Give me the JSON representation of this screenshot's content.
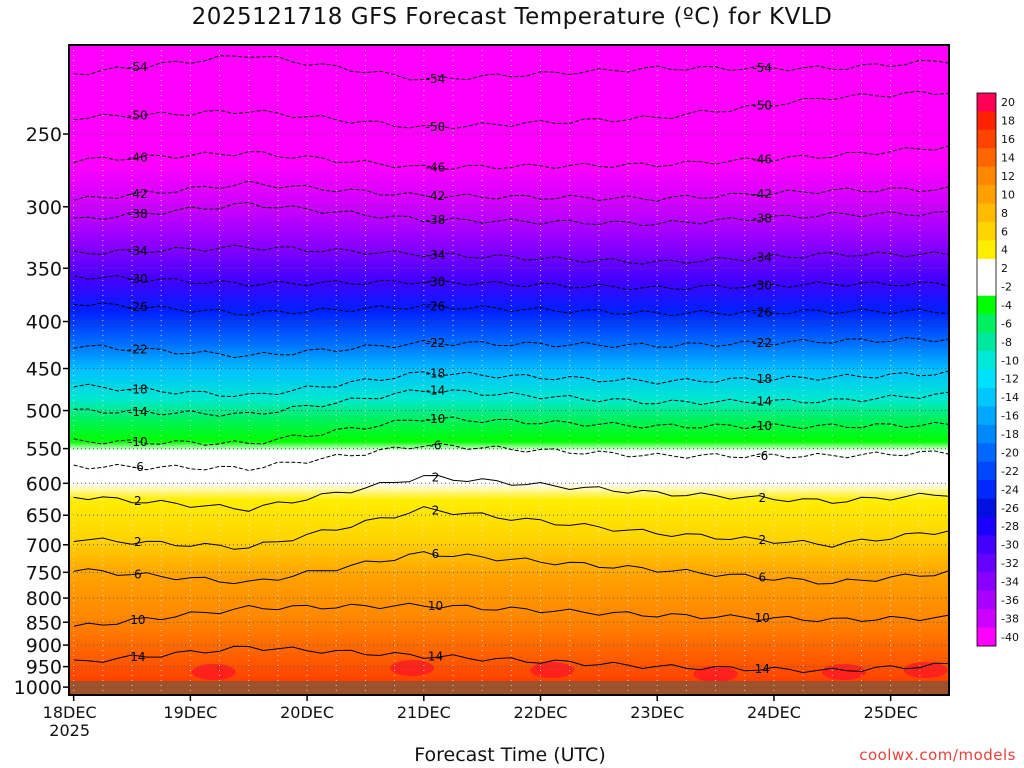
{
  "title": "2025121718 GFS Forecast Temperature (ºC) for KVLD",
  "x_axis_title": "Forecast Time (UTC)",
  "credit": "coolwx.com/models",
  "chart_data": {
    "type": "heatmap",
    "title": "2025121718 GFS Forecast Temperature (ºC) for KVLD",
    "xlabel": "Forecast Time (UTC)",
    "ylabel": "",
    "x_ticks": [
      "18DEC\n2025",
      "19DEC",
      "20DEC",
      "21DEC",
      "22DEC",
      "23DEC",
      "24DEC",
      "25DEC"
    ],
    "y_ticks": [
      250,
      300,
      350,
      400,
      450,
      500,
      550,
      600,
      650,
      700,
      750,
      800,
      850,
      900,
      950,
      1000
    ],
    "y_range": [
      200,
      1020
    ],
    "x_range_days": [
      0,
      7.5
    ],
    "colorbar": {
      "labels": [
        20,
        18,
        16,
        14,
        12,
        10,
        8,
        6,
        4,
        2,
        -2,
        -4,
        -6,
        -8,
        -10,
        -12,
        -14,
        -16,
        -18,
        -20,
        -22,
        -24,
        -26,
        -28,
        -30,
        -32,
        -34,
        -36,
        -38,
        -40
      ],
      "colors": [
        "#ff0055",
        "#ff2200",
        "#ff4400",
        "#ff6600",
        "#ff8800",
        "#ffa000",
        "#ffbb00",
        "#ffd400",
        "#ffee00",
        "#ffffff",
        "#ffffff",
        "#00ff00",
        "#00f060",
        "#00e8a0",
        "#00e8d8",
        "#00e0ff",
        "#00c8ff",
        "#00a8ff",
        "#0088ff",
        "#0068ff",
        "#0048ff",
        "#0028ff",
        "#0010e0",
        "#1a00ff",
        "#4400ff",
        "#6600ff",
        "#8800ff",
        "#aa00ff",
        "#cc00ff",
        "#ff00ff"
      ]
    },
    "contours": [
      {
        "label": "-54",
        "levels_by_day": [
          [
            0,
            215
          ],
          [
            1.5,
            205
          ],
          [
            3,
            218
          ],
          [
            5,
            212
          ],
          [
            6.5,
            212
          ],
          [
            7.5,
            208
          ]
        ]
      },
      {
        "label": "-50",
        "levels_by_day": [
          [
            0,
            240
          ],
          [
            1.5,
            236
          ],
          [
            3,
            246
          ],
          [
            5,
            240
          ],
          [
            6.5,
            228
          ],
          [
            7.5,
            225
          ]
        ]
      },
      {
        "label": "-46",
        "levels_by_day": [
          [
            0,
            267
          ],
          [
            1.5,
            262
          ],
          [
            3,
            272
          ],
          [
            5,
            270
          ],
          [
            6.5,
            264
          ],
          [
            7.5,
            258
          ]
        ]
      },
      {
        "label": "-42",
        "levels_by_day": [
          [
            0,
            295
          ],
          [
            1.5,
            283
          ],
          [
            3,
            292
          ],
          [
            5,
            294
          ],
          [
            6.5,
            288
          ],
          [
            7.5,
            287
          ]
        ]
      },
      {
        "label": "-38",
        "levels_by_day": [
          [
            0,
            310
          ],
          [
            1.5,
            298
          ],
          [
            3,
            310
          ],
          [
            5,
            313
          ],
          [
            6.5,
            306
          ],
          [
            7.5,
            305
          ]
        ]
      },
      {
        "label": "-34",
        "levels_by_day": [
          [
            0,
            337
          ],
          [
            1.5,
            332
          ],
          [
            3,
            338
          ],
          [
            5,
            345
          ],
          [
            6.5,
            338
          ],
          [
            7.5,
            338
          ]
        ]
      },
      {
        "label": "-30",
        "levels_by_day": [
          [
            0,
            357
          ],
          [
            1.5,
            364
          ],
          [
            3,
            362
          ],
          [
            5,
            368
          ],
          [
            6.5,
            364
          ],
          [
            7.5,
            364
          ]
        ]
      },
      {
        "label": "-26",
        "levels_by_day": [
          [
            0,
            382
          ],
          [
            1.5,
            392
          ],
          [
            3,
            385
          ],
          [
            5,
            392
          ],
          [
            6.5,
            390
          ],
          [
            7.5,
            390
          ]
        ]
      },
      {
        "label": "-22",
        "levels_by_day": [
          [
            0,
            425
          ],
          [
            1.5,
            436
          ],
          [
            3,
            422
          ],
          [
            5,
            425
          ],
          [
            6.5,
            420
          ],
          [
            7.5,
            418
          ]
        ]
      },
      {
        "label": "-18",
        "levels_by_day": [
          [
            0,
            470
          ],
          [
            1.5,
            482
          ],
          [
            3,
            455
          ],
          [
            5,
            465
          ],
          [
            6.5,
            460
          ],
          [
            7.5,
            455
          ]
        ]
      },
      {
        "label": "-14",
        "levels_by_day": [
          [
            0,
            500
          ],
          [
            1.5,
            505
          ],
          [
            3,
            475
          ],
          [
            5,
            490
          ],
          [
            6.5,
            488
          ],
          [
            7.5,
            480
          ]
        ]
      },
      {
        "label": "-10",
        "levels_by_day": [
          [
            0,
            540
          ],
          [
            1.5,
            543
          ],
          [
            3,
            510
          ],
          [
            5,
            520
          ],
          [
            6.5,
            520
          ],
          [
            7.5,
            518
          ]
        ]
      },
      {
        "label": "-6",
        "levels_by_day": [
          [
            0,
            575
          ],
          [
            1.5,
            578
          ],
          [
            3,
            545
          ],
          [
            5,
            560
          ],
          [
            6.5,
            560
          ],
          [
            7.5,
            555
          ]
        ]
      },
      {
        "label": "2",
        "levels_by_day": [
          [
            0,
            620
          ],
          [
            1.5,
            640
          ],
          [
            3,
            590
          ],
          [
            5,
            615
          ],
          [
            6.5,
            628
          ],
          [
            7.5,
            616
          ]
        ]
      },
      {
        "label": "2",
        "levels_by_day": [
          [
            0,
            690
          ],
          [
            1.5,
            705
          ],
          [
            3,
            640
          ],
          [
            5,
            680
          ],
          [
            6.5,
            700
          ],
          [
            7.5,
            675
          ]
        ]
      },
      {
        "label": "6",
        "levels_by_day": [
          [
            0,
            745
          ],
          [
            1.5,
            770
          ],
          [
            3,
            715
          ],
          [
            5,
            745
          ],
          [
            6.5,
            770
          ],
          [
            7.5,
            750
          ]
        ]
      },
      {
        "label": "10",
        "levels_by_day": [
          [
            0,
            860
          ],
          [
            1.5,
            820
          ],
          [
            3,
            815
          ],
          [
            5,
            835
          ],
          [
            6.5,
            845
          ],
          [
            7.5,
            840
          ]
        ]
      },
      {
        "label": "14",
        "levels_by_day": [
          [
            0,
            940
          ],
          [
            1.5,
            905
          ],
          [
            3,
            925
          ],
          [
            5,
            950
          ],
          [
            6.5,
            960
          ],
          [
            7.5,
            945
          ]
        ]
      }
    ],
    "grid": true,
    "legend": "colorbar-right"
  }
}
